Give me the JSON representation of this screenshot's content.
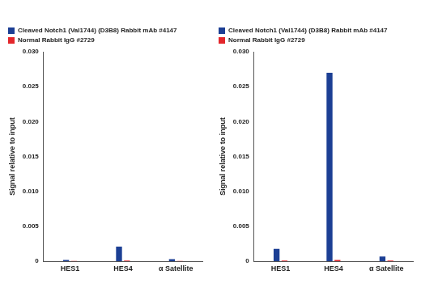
{
  "chart_data": [
    {
      "type": "bar",
      "y_label": "Signal relative to input",
      "categories": [
        "HES1",
        "HES4",
        "α Satellite"
      ],
      "series": [
        {
          "name": "Cleaved Notch1 (Val1744) (D3B8) Rabbit mAb #4147",
          "color": "#1c3f94",
          "values": [
            0.0002,
            0.0021,
            0.0003
          ]
        },
        {
          "name": "Normal Rabbit IgG #2729",
          "color": "#e3262b",
          "values": [
            5e-05,
            0.0001,
            5e-05
          ]
        }
      ],
      "ylim": [
        0,
        0.03
      ],
      "yticks": [
        0,
        0.005,
        {
          "value": 0.01,
          "label": "0.010"
        },
        0.015,
        {
          "value": 0.02,
          "label": "0.020"
        },
        0.025,
        {
          "value": 0.03,
          "label": "0.030"
        }
      ],
      "grid": false,
      "legend": "top"
    },
    {
      "type": "bar",
      "y_label": "Signal relative to input",
      "categories": [
        "HES1",
        "HES4",
        "α Satellite"
      ],
      "series": [
        {
          "name": "Cleaved Notch1 (Val1744) (D3B8) Rabbit mAb #4147",
          "color": "#1c3f94",
          "values": [
            0.0018,
            0.027,
            0.0007
          ]
        },
        {
          "name": "Normal Rabbit IgG #2729",
          "color": "#e3262b",
          "values": [
            0.0001,
            0.0002,
            0.0001
          ]
        }
      ],
      "ylim": [
        0,
        0.03
      ],
      "yticks": [
        0,
        0.005,
        {
          "value": 0.01,
          "label": "0.010"
        },
        0.015,
        {
          "value": 0.02,
          "label": "0.020"
        },
        0.025,
        {
          "value": 0.03,
          "label": "0.030"
        }
      ],
      "grid": false,
      "legend": "top"
    }
  ]
}
